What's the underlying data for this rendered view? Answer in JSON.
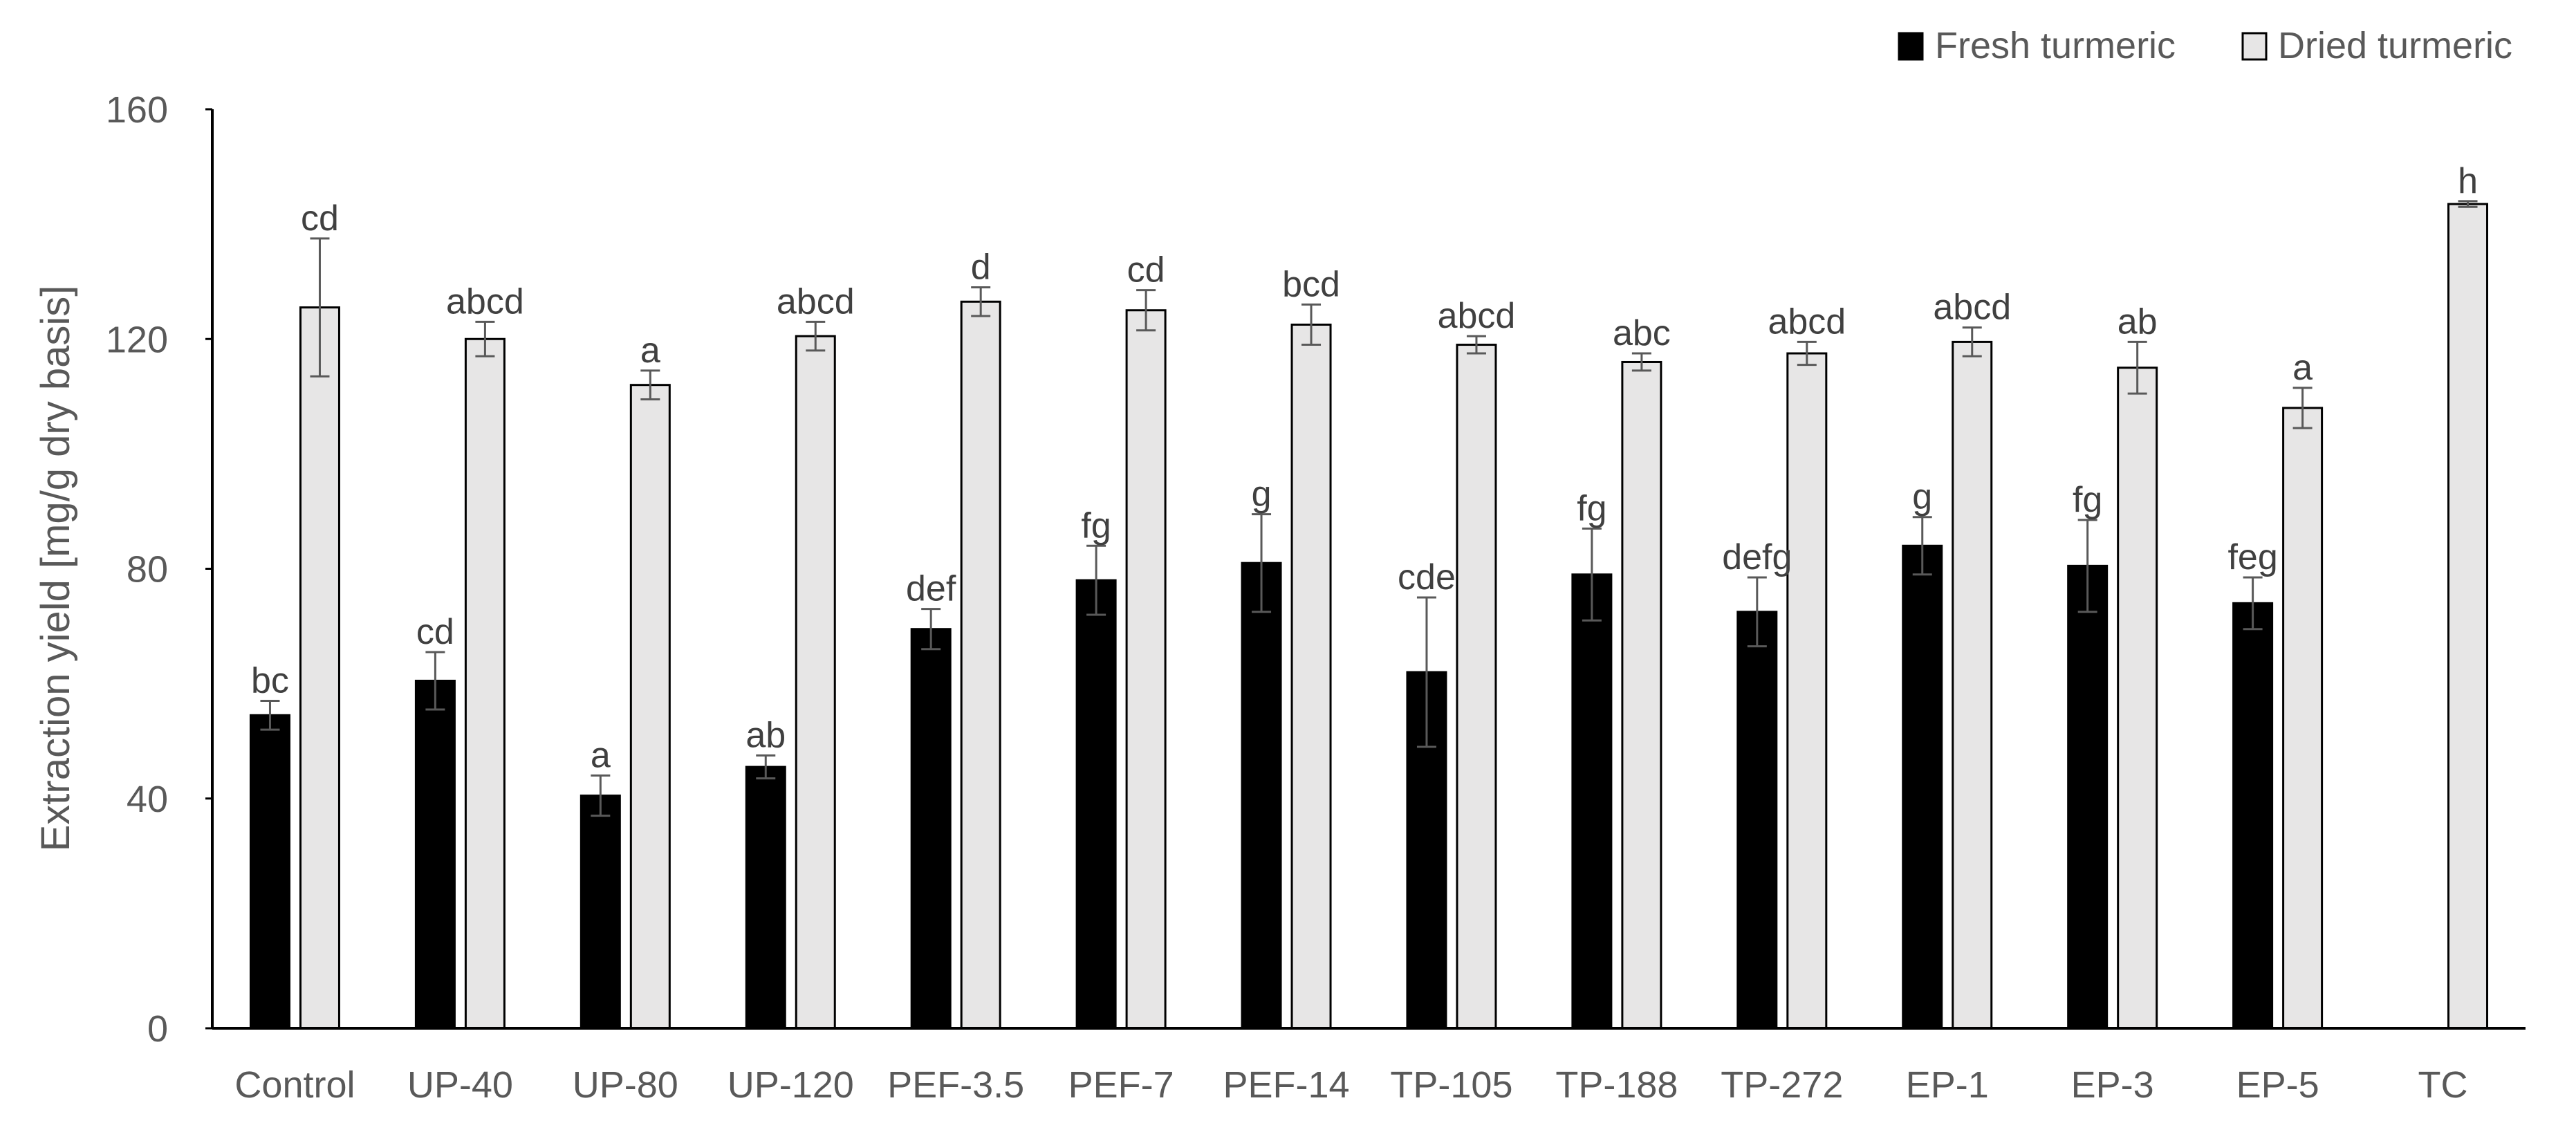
{
  "chart_data": {
    "type": "bar",
    "title": "",
    "xlabel": "",
    "ylabel": "Extraction yield [mg/g dry basis]",
    "ylim": [
      0,
      160
    ],
    "yticks": [
      0,
      40,
      80,
      120,
      160
    ],
    "grid": false,
    "legend_position": "top-right",
    "categories": [
      "Control",
      "UP-40",
      "UP-80",
      "UP-120",
      "PEF-3.5",
      "PEF-7",
      "PEF-14",
      "TP-105",
      "TP-188",
      "TP-272",
      "EP-1",
      "EP-3",
      "EP-5",
      "TC"
    ],
    "series": [
      {
        "name": "Fresh turmeric",
        "color": "#000000",
        "values": [
          54.5,
          60.5,
          40.5,
          45.5,
          69.5,
          78,
          81,
          62,
          79,
          72.5,
          84,
          80.5,
          74,
          null
        ],
        "errors": [
          2.5,
          5,
          3.5,
          2,
          3.5,
          6,
          8.5,
          13,
          8,
          6,
          5,
          8,
          4.5,
          null
        ],
        "labels": [
          "bc",
          "cd",
          "a",
          "ab",
          "def",
          "fg",
          "g",
          "cde",
          "fg",
          "defg",
          "g",
          "fg",
          "feg",
          ""
        ]
      },
      {
        "name": "Dried turmeric",
        "color": "#e7e6e6",
        "values": [
          125.5,
          120,
          112,
          120.5,
          126.5,
          125,
          122.5,
          119,
          116,
          117.5,
          119.5,
          115,
          108,
          143.5
        ],
        "errors": [
          12,
          3,
          2.5,
          2.5,
          2.5,
          3.5,
          3.5,
          1.5,
          1.5,
          2,
          2.5,
          4.5,
          3.5,
          0.5
        ],
        "labels": [
          "cd",
          "abcd",
          "a",
          "abcd",
          "d",
          "cd",
          "bcd",
          "abcd",
          "abc",
          "abcd",
          "abcd",
          "ab",
          "a",
          "h"
        ]
      }
    ]
  }
}
